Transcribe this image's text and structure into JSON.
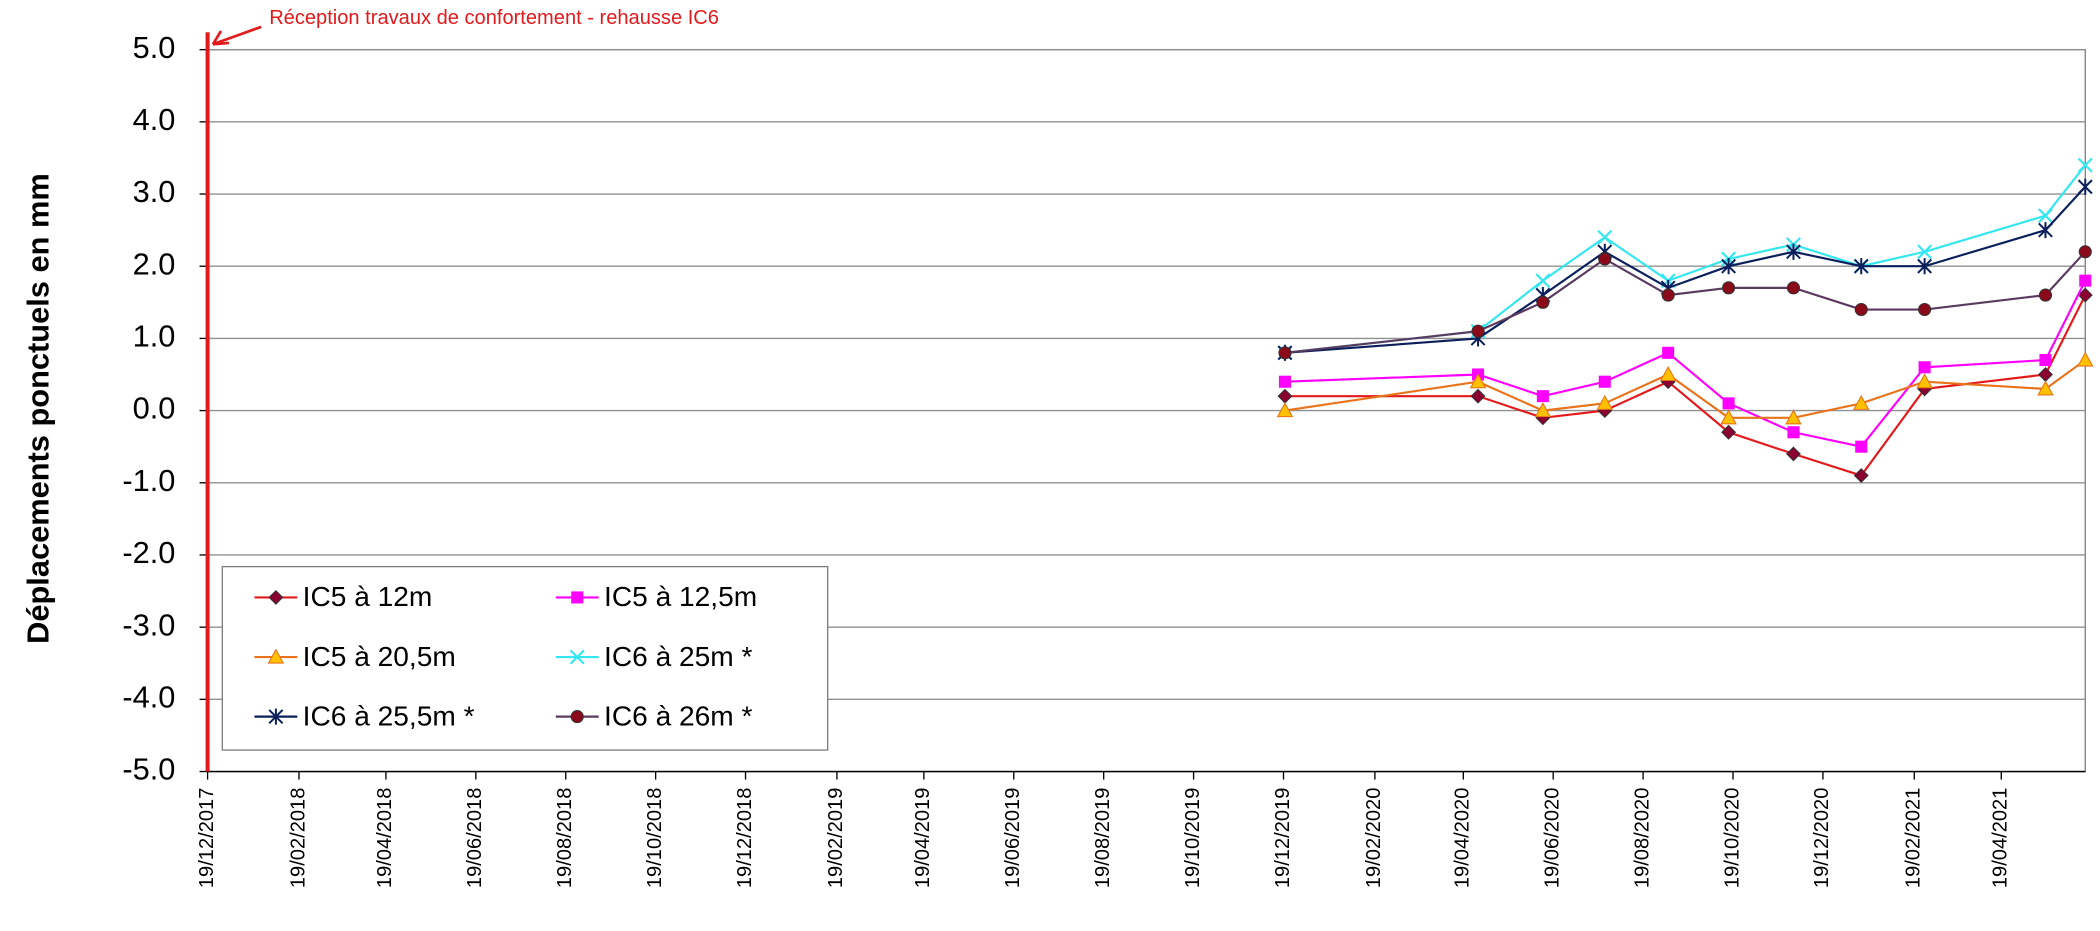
{
  "chart_data": {
    "type": "line",
    "y_label": "Déplacements ponctuels en mm",
    "annotation": {
      "text": "Réception travaux de confortement - rehausse IC6",
      "x": "2017-12-19",
      "color": "#e31a1c"
    },
    "x": [
      "2019-12-20",
      "2020-04-29",
      "2020-06-12",
      "2020-07-24",
      "2020-09-05",
      "2020-10-16",
      "2020-11-29",
      "2021-01-14",
      "2021-02-26",
      "2021-05-19",
      "2021-06-15"
    ],
    "xlim": [
      "2017-12-19",
      "2021-06-15"
    ],
    "xticks": [
      {
        "value": "2017-12-19",
        "label": "19/12/2017"
      },
      {
        "value": "2018-02-19",
        "label": "19/02/2018"
      },
      {
        "value": "2018-04-19",
        "label": "19/04/2018"
      },
      {
        "value": "2018-06-19",
        "label": "19/06/2018"
      },
      {
        "value": "2018-08-19",
        "label": "19/08/2018"
      },
      {
        "value": "2018-10-19",
        "label": "19/10/2018"
      },
      {
        "value": "2018-12-19",
        "label": "19/12/2018"
      },
      {
        "value": "2019-02-19",
        "label": "19/02/2019"
      },
      {
        "value": "2019-04-19",
        "label": "19/04/2019"
      },
      {
        "value": "2019-06-19",
        "label": "19/06/2019"
      },
      {
        "value": "2019-08-19",
        "label": "19/08/2019"
      },
      {
        "value": "2019-10-19",
        "label": "19/10/2019"
      },
      {
        "value": "2019-12-19",
        "label": "19/12/2019"
      },
      {
        "value": "2020-02-19",
        "label": "19/02/2020"
      },
      {
        "value": "2020-04-19",
        "label": "19/04/2020"
      },
      {
        "value": "2020-06-19",
        "label": "19/06/2020"
      },
      {
        "value": "2020-08-19",
        "label": "19/08/2020"
      },
      {
        "value": "2020-10-19",
        "label": "19/10/2020"
      },
      {
        "value": "2020-12-19",
        "label": "19/12/2020"
      },
      {
        "value": "2021-02-19",
        "label": "19/02/2021"
      },
      {
        "value": "2021-04-19",
        "label": "19/04/2021"
      }
    ],
    "ylim": [
      -5,
      5
    ],
    "yticks": [
      {
        "value": -5,
        "label": "-5.0"
      },
      {
        "value": -4,
        "label": "-4.0"
      },
      {
        "value": -3,
        "label": "-3.0"
      },
      {
        "value": -2,
        "label": "-2.0"
      },
      {
        "value": -1,
        "label": "-1.0"
      },
      {
        "value": 0,
        "label": "0.0"
      },
      {
        "value": 1,
        "label": "1.0"
      },
      {
        "value": 2,
        "label": "2.0"
      },
      {
        "value": 3,
        "label": "3.0"
      },
      {
        "value": 4,
        "label": "4.0"
      },
      {
        "value": 5,
        "label": "5.0"
      }
    ],
    "grid": true,
    "legend": "lower-left",
    "series": [
      {
        "name": "IC5 à 12m",
        "color": "#e31a1c",
        "marker": "diamond",
        "marker_color": "#8b0030",
        "values": [
          0.2,
          0.2,
          -0.1,
          0.0,
          0.4,
          -0.3,
          -0.6,
          -0.9,
          0.3,
          0.5,
          1.6
        ]
      },
      {
        "name": "IC5 à 12,5m",
        "color": "#ff00ff",
        "marker": "square",
        "marker_color": "#ff00ff",
        "values": [
          0.4,
          0.5,
          0.2,
          0.4,
          0.8,
          0.1,
          -0.3,
          -0.5,
          0.6,
          0.7,
          1.8
        ]
      },
      {
        "name": "IC5 à 20,5m",
        "color": "#e8731a",
        "marker": "triangle",
        "marker_color": "#ffc000",
        "values": [
          0.0,
          0.4,
          0.0,
          0.1,
          0.5,
          -0.1,
          -0.1,
          0.1,
          0.4,
          0.3,
          0.7
        ]
      },
      {
        "name": "IC6 à 25m *",
        "color": "#33e6f0",
        "marker": "x",
        "marker_color": "#33e6f0",
        "values": [
          0.8,
          1.1,
          1.8,
          2.4,
          1.8,
          2.1,
          2.3,
          2.0,
          2.2,
          2.7,
          3.4
        ]
      },
      {
        "name": "IC6 à 25,5m *",
        "color": "#0a1f5c",
        "marker": "star",
        "marker_color": "#0a1f5c",
        "values": [
          0.8,
          1.0,
          1.6,
          2.2,
          1.7,
          2.0,
          2.2,
          2.0,
          2.0,
          2.5,
          3.1
        ]
      },
      {
        "name": "IC6 à 26m *",
        "color": "#5a3a5e",
        "marker": "circle",
        "marker_color": "#8b0a1a",
        "values": [
          0.8,
          1.1,
          1.5,
          2.1,
          1.6,
          1.7,
          1.7,
          1.4,
          1.4,
          1.6,
          2.2
        ]
      }
    ]
  }
}
